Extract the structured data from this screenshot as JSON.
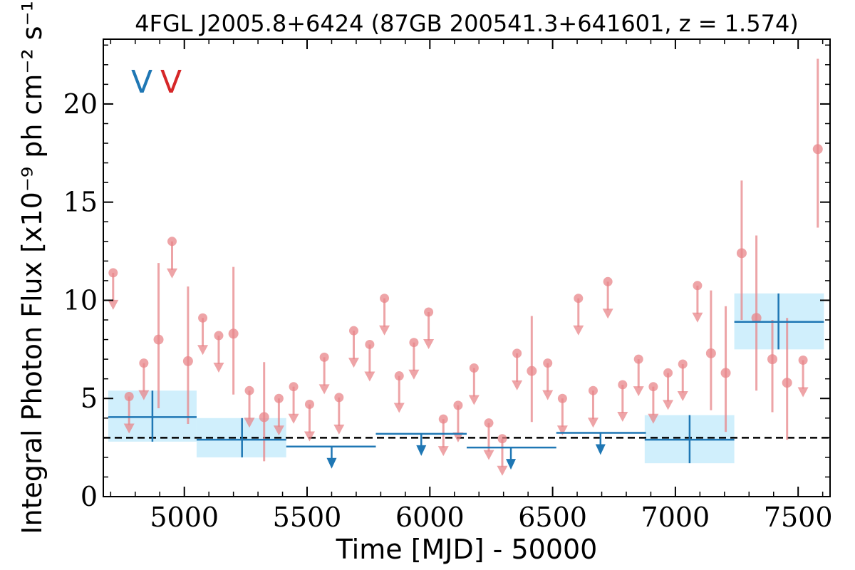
{
  "chart_data": {
    "type": "scatter",
    "title": "4FGL J2005.8+6424 (87GB 200541.3+641601, z = 1.574)",
    "xlabel": "Time [MJD] - 50000",
    "ylabel": "Integral Photon Flux [x10⁻⁹ ph cm⁻² s⁻¹]",
    "xlim": [
      4670,
      7630
    ],
    "ylim": [
      0,
      23.3
    ],
    "x_ticks": [
      5000,
      5500,
      6000,
      6500,
      7000,
      7500
    ],
    "y_ticks": [
      0,
      5,
      10,
      15,
      20
    ],
    "x_tick_labels": [
      "5000",
      "5500",
      "6000",
      "6500",
      "7000",
      "7500"
    ],
    "y_tick_labels": [
      "0",
      "5",
      "10",
      "15",
      "20"
    ],
    "grid": false,
    "flags": [
      {
        "label": "V",
        "color": "#1f77b4"
      },
      {
        "label": "V",
        "color": "#d62728"
      }
    ],
    "reference_line": {
      "y": 3.0,
      "style": "dashed",
      "color": "#000000"
    },
    "series": [
      {
        "color": "#1f77b4",
        "band_color": "#cdeefc",
        "detections": [
          {
            "x": 4870,
            "x_lo": 4690,
            "x_hi": 5050,
            "y": 4.05,
            "y_lo": 2.8,
            "y_hi": 5.4
          },
          {
            "x": 5235,
            "x_lo": 5050,
            "x_hi": 5415,
            "y": 2.9,
            "y_lo": 2.0,
            "y_hi": 4.0
          },
          {
            "x": 7058,
            "x_lo": 6875,
            "x_hi": 7240,
            "y": 2.9,
            "y_lo": 1.7,
            "y_hi": 4.15
          },
          {
            "x": 7420,
            "x_lo": 7240,
            "x_hi": 7605,
            "y": 8.9,
            "y_lo": 7.5,
            "y_hi": 10.35
          }
        ],
        "upper_limits": [
          {
            "x": 5600,
            "x_lo": 5415,
            "x_hi": 5780,
            "y": 2.55
          },
          {
            "x": 5965,
            "x_lo": 5780,
            "x_hi": 6150,
            "y": 3.2
          },
          {
            "x": 6330,
            "x_lo": 6150,
            "x_hi": 6515,
            "y": 2.5
          },
          {
            "x": 6695,
            "x_lo": 6515,
            "x_hi": 6880,
            "y": 3.25
          }
        ]
      },
      {
        "color": "#e8868a",
        "detections": [
          {
            "x": 4895,
            "y": 8.0,
            "y_lo": 4.5,
            "y_hi": 11.9
          },
          {
            "x": 5015,
            "y": 6.9,
            "y_lo": 3.7,
            "y_hi": 10.7
          },
          {
            "x": 5200,
            "y": 8.3,
            "y_lo": 5.2,
            "y_hi": 11.7
          },
          {
            "x": 5325,
            "y": 4.05,
            "y_lo": 1.8,
            "y_hi": 6.85
          },
          {
            "x": 6415,
            "y": 6.4,
            "y_lo": 3.8,
            "y_hi": 9.2
          },
          {
            "x": 7145,
            "y": 7.3,
            "y_lo": 4.4,
            "y_hi": 10.5
          },
          {
            "x": 7205,
            "y": 6.3,
            "y_lo": 3.3,
            "y_hi": 9.7
          },
          {
            "x": 7270,
            "y": 12.4,
            "y_lo": 9.0,
            "y_hi": 16.1
          },
          {
            "x": 7330,
            "y": 9.1,
            "y_lo": 5.4,
            "y_hi": 13.3
          },
          {
            "x": 7395,
            "y": 7.0,
            "y_lo": 4.3,
            "y_hi": 9.0
          },
          {
            "x": 7455,
            "y": 5.8,
            "y_lo": 2.9,
            "y_hi": 9.1
          },
          {
            "x": 7580,
            "y": 17.7,
            "y_lo": 13.7,
            "y_hi": 22.3
          }
        ],
        "upper_limits": [
          {
            "x": 4710,
            "y": 11.4
          },
          {
            "x": 4775,
            "y": 5.1
          },
          {
            "x": 4835,
            "y": 6.8
          },
          {
            "x": 4950,
            "y": 13.0
          },
          {
            "x": 5075,
            "y": 9.1
          },
          {
            "x": 5140,
            "y": 8.2
          },
          {
            "x": 5265,
            "y": 5.4
          },
          {
            "x": 5385,
            "y": 5.0
          },
          {
            "x": 5445,
            "y": 5.6
          },
          {
            "x": 5510,
            "y": 4.7
          },
          {
            "x": 5570,
            "y": 7.1
          },
          {
            "x": 5630,
            "y": 5.05
          },
          {
            "x": 5690,
            "y": 8.45
          },
          {
            "x": 5755,
            "y": 7.75
          },
          {
            "x": 5815,
            "y": 10.1
          },
          {
            "x": 5875,
            "y": 6.15
          },
          {
            "x": 5935,
            "y": 7.85
          },
          {
            "x": 5995,
            "y": 9.4
          },
          {
            "x": 6055,
            "y": 3.95
          },
          {
            "x": 6115,
            "y": 4.65
          },
          {
            "x": 6180,
            "y": 6.55
          },
          {
            "x": 6240,
            "y": 3.75
          },
          {
            "x": 6295,
            "y": 2.95
          },
          {
            "x": 6355,
            "y": 7.3
          },
          {
            "x": 6480,
            "y": 6.8
          },
          {
            "x": 6540,
            "y": 5.0
          },
          {
            "x": 6605,
            "y": 10.1
          },
          {
            "x": 6665,
            "y": 5.4
          },
          {
            "x": 6725,
            "y": 10.95
          },
          {
            "x": 6785,
            "y": 5.7
          },
          {
            "x": 6850,
            "y": 7.0
          },
          {
            "x": 6910,
            "y": 5.6
          },
          {
            "x": 6970,
            "y": 6.3
          },
          {
            "x": 7030,
            "y": 6.75
          },
          {
            "x": 7090,
            "y": 10.75
          },
          {
            "x": 7520,
            "y": 6.95
          }
        ]
      }
    ]
  }
}
